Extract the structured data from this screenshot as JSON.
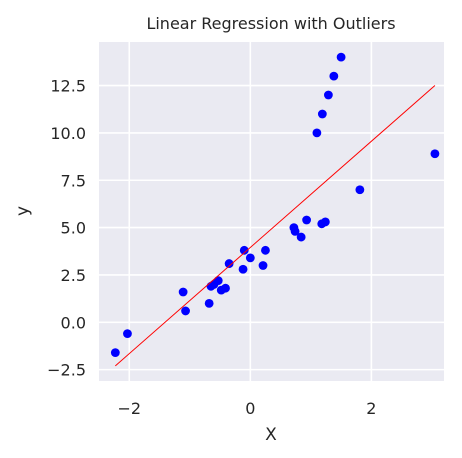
{
  "chart_data": {
    "type": "scatter",
    "title": "Linear Regression with Outliers",
    "xlabel": "X",
    "ylabel": "y",
    "xlim": [
      -2.5,
      3.2
    ],
    "ylim": [
      -3.1,
      14.8
    ],
    "xticks": [
      -2,
      0,
      2
    ],
    "xtick_labels": [
      "−2",
      "0",
      "2"
    ],
    "yticks": [
      -2.5,
      0.0,
      2.5,
      5.0,
      7.5,
      10.0,
      12.5
    ],
    "ytick_labels": [
      "−2.5",
      "0.0",
      "2.5",
      "5.0",
      "7.5",
      "10.0",
      "12.5"
    ],
    "grid": true,
    "colors": {
      "background": "#eaeaf2",
      "grid": "#ffffff",
      "points": "#0000ff",
      "line": "#ff0000"
    },
    "series": [
      {
        "kind": "points",
        "x": [
          -2.23,
          -2.03,
          -1.11,
          -1.07,
          -0.68,
          -0.65,
          -0.6,
          -0.53,
          -0.48,
          -0.41,
          -0.35,
          -0.12,
          -0.1,
          0.0,
          0.21,
          0.25,
          0.72,
          0.74,
          0.84,
          0.93,
          1.1,
          1.18,
          1.19,
          1.24,
          1.29,
          1.38,
          1.5,
          1.81,
          3.05
        ],
        "y": [
          -1.6,
          -0.6,
          1.6,
          0.6,
          1.0,
          1.9,
          2.0,
          2.2,
          1.7,
          1.8,
          3.1,
          2.8,
          3.8,
          3.4,
          3.0,
          3.8,
          5.0,
          4.8,
          4.5,
          5.4,
          10.0,
          5.2,
          11.0,
          5.3,
          12.0,
          13.0,
          14.0,
          7.0,
          8.9
        ]
      },
      {
        "kind": "line",
        "x": [
          -2.23,
          3.05
        ],
        "y": [
          -2.3,
          12.5
        ]
      }
    ]
  }
}
